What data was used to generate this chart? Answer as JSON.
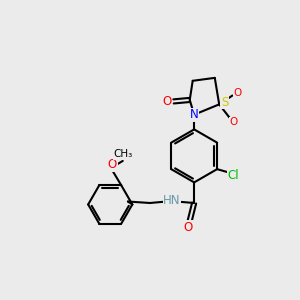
{
  "bg_color": "#ebebeb",
  "bond_color": "#000000",
  "bond_width": 1.5,
  "atom_colors": {
    "O": "#ff0000",
    "N": "#0000ff",
    "S": "#cccc00",
    "Cl": "#00bb00",
    "C": "#000000",
    "H": "#6699aa"
  },
  "font_size": 8.5
}
